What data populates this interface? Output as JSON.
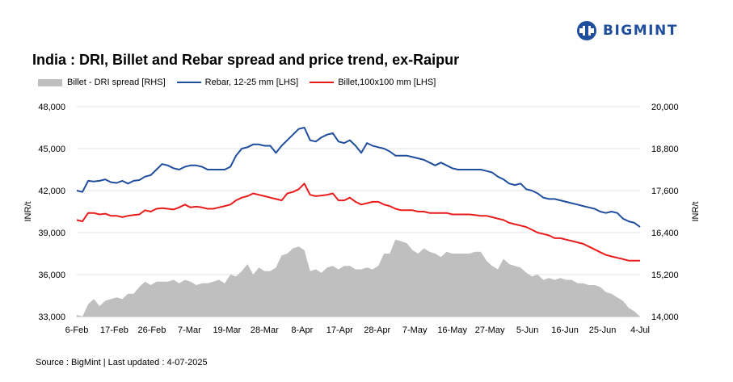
{
  "brand": {
    "name": "BIGMINT",
    "icon": "bigmint-logo-icon",
    "color": "#1f4e9e"
  },
  "source": "Source : BigMint | Last updated : 4-07-2025",
  "chart_data": {
    "type": "line",
    "title": "India : DRI, Billet and Rebar spread and price trend, ex-Raipur",
    "ylabel_left": "INR/t",
    "ylabel_right": "INR/t",
    "ylim_left": [
      33000,
      48000
    ],
    "ylim_right": [
      14000,
      20000
    ],
    "yticks_left": [
      "48,000",
      "45,000",
      "42,000",
      "39,000",
      "36,000",
      "33,000"
    ],
    "yticks_right": [
      "20,000",
      "18,800",
      "17,600",
      "16,400",
      "15,200",
      "14,000"
    ],
    "x_tick_labels": [
      "6-Feb",
      "17-Feb",
      "26-Feb",
      "7-Mar",
      "19-Mar",
      "28-Mar",
      "8-Apr",
      "17-Apr",
      "28-Apr",
      "7-May",
      "16-May",
      "27-May",
      "5-Jun",
      "16-Jun",
      "25-Jun",
      "4-Jul"
    ],
    "n_points": 100,
    "series": [
      {
        "name": "Billet - DRI spread  [RHS]",
        "type": "area",
        "axis": "right",
        "color": "#bfbfbf",
        "values": [
          14050,
          14000,
          14350,
          14500,
          14300,
          14450,
          14500,
          14550,
          14500,
          14650,
          14650,
          14850,
          15000,
          14900,
          15000,
          15000,
          15000,
          15050,
          14950,
          15050,
          15000,
          14900,
          14950,
          14950,
          15000,
          15050,
          14950,
          15200,
          15150,
          15300,
          15500,
          15200,
          15400,
          15300,
          15300,
          15400,
          15750,
          15800,
          15950,
          16000,
          15900,
          15300,
          15350,
          15250,
          15400,
          15450,
          15350,
          15450,
          15450,
          15350,
          15350,
          15400,
          15350,
          15450,
          15800,
          15800,
          16200,
          16150,
          16100,
          15900,
          15800,
          15950,
          15850,
          15800,
          15700,
          15850,
          15800,
          15800,
          15800,
          15800,
          15850,
          15850,
          15600,
          15450,
          15350,
          15650,
          15500,
          15450,
          15400,
          15250,
          15150,
          15200,
          15050,
          15100,
          15050,
          15100,
          15050,
          15050,
          14950,
          14950,
          14900,
          14900,
          14850,
          14700,
          14650,
          14550,
          14450,
          14250,
          14150,
          14000
        ]
      },
      {
        "name": "Rebar, 12-25 mm [LHS]",
        "type": "line",
        "axis": "left",
        "color": "#1f4e9e",
        "values": [
          42000,
          41900,
          42700,
          42650,
          42700,
          42800,
          42600,
          42550,
          42700,
          42500,
          42700,
          42750,
          43000,
          43100,
          43500,
          43900,
          43800,
          43600,
          43500,
          43700,
          43800,
          43800,
          43700,
          43500,
          43500,
          43500,
          43500,
          43700,
          44500,
          45000,
          45100,
          45300,
          45300,
          45200,
          45200,
          44700,
          45200,
          45600,
          46000,
          46400,
          46500,
          45600,
          45500,
          45800,
          46000,
          46100,
          45500,
          45400,
          45600,
          45200,
          44700,
          45400,
          45200,
          45100,
          45000,
          44800,
          44500,
          44500,
          44500,
          44400,
          44300,
          44200,
          44000,
          43800,
          44000,
          43800,
          43600,
          43500,
          43500,
          43500,
          43500,
          43500,
          43400,
          43300,
          43000,
          42800,
          42500,
          42400,
          42500,
          42100,
          42000,
          41800,
          41500,
          41400,
          41400,
          41300,
          41200,
          41100,
          41000,
          40900,
          40800,
          40700,
          40500,
          40400,
          40500,
          40400,
          40000,
          39800,
          39700,
          39400
        ]
      },
      {
        "name": "Billet,100x100 mm [LHS]",
        "type": "line",
        "axis": "left",
        "color": "#e81c1c",
        "values": [
          39900,
          39800,
          40400,
          40400,
          40300,
          40350,
          40200,
          40200,
          40100,
          40200,
          40250,
          40300,
          40600,
          40500,
          40700,
          40750,
          40700,
          40650,
          40800,
          41000,
          40800,
          40850,
          40800,
          40700,
          40700,
          40800,
          40900,
          41000,
          41300,
          41500,
          41600,
          41800,
          41700,
          41600,
          41500,
          41400,
          41300,
          41800,
          41900,
          42100,
          42500,
          41700,
          41600,
          41650,
          41700,
          41800,
          41300,
          41300,
          41500,
          41200,
          41000,
          41100,
          41200,
          41200,
          41000,
          40900,
          40700,
          40600,
          40600,
          40600,
          40500,
          40500,
          40400,
          40400,
          40400,
          40400,
          40300,
          40300,
          40300,
          40300,
          40250,
          40200,
          40200,
          40100,
          40000,
          39900,
          39700,
          39600,
          39500,
          39400,
          39200,
          39000,
          38900,
          38800,
          38600,
          38600,
          38500,
          38400,
          38300,
          38200,
          38000,
          37800,
          37600,
          37400,
          37300,
          37200,
          37100,
          37000,
          37000,
          37000
        ]
      }
    ]
  }
}
